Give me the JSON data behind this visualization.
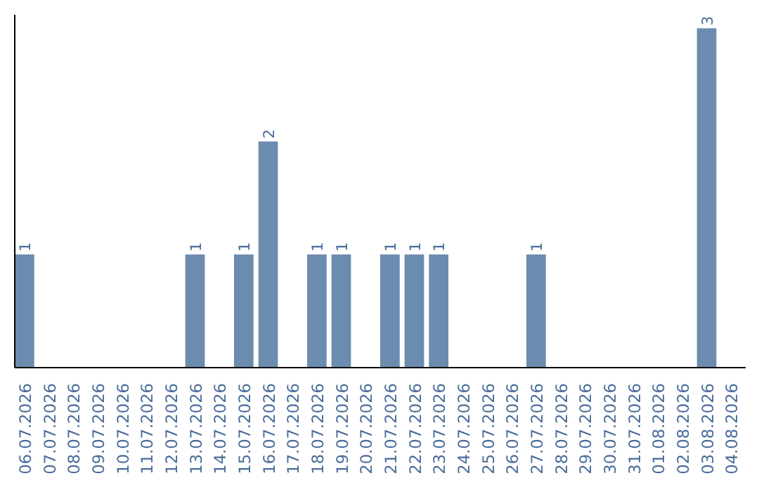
{
  "chart_data": {
    "type": "bar",
    "categories": [
      "06.07.2026",
      "07.07.2026",
      "08.07.2026",
      "09.07.2026",
      "10.07.2026",
      "11.07.2026",
      "12.07.2026",
      "13.07.2026",
      "14.07.2026",
      "15.07.2026",
      "16.07.2026",
      "17.07.2026",
      "18.07.2026",
      "19.07.2026",
      "20.07.2026",
      "21.07.2026",
      "22.07.2026",
      "23.07.2026",
      "24.07.2026",
      "25.07.2026",
      "26.07.2026",
      "27.07.2026",
      "28.07.2026",
      "29.07.2026",
      "30.07.2026",
      "31.07.2026",
      "01.08.2026",
      "02.08.2026",
      "03.08.2026",
      "04.08.2026"
    ],
    "values": [
      1,
      0,
      0,
      0,
      0,
      0,
      0,
      1,
      0,
      1,
      2,
      0,
      1,
      1,
      0,
      1,
      1,
      1,
      0,
      0,
      0,
      1,
      0,
      0,
      0,
      0,
      0,
      0,
      3,
      0
    ],
    "value_labels": [
      "1",
      null,
      null,
      null,
      null,
      null,
      null,
      "1",
      null,
      "1",
      "2",
      null,
      "1",
      "1",
      null,
      "1",
      "1",
      "1",
      null,
      null,
      null,
      "1",
      null,
      null,
      null,
      null,
      null,
      null,
      "3",
      null
    ],
    "color": "#6b8cae",
    "grid": false,
    "relative": false
  }
}
